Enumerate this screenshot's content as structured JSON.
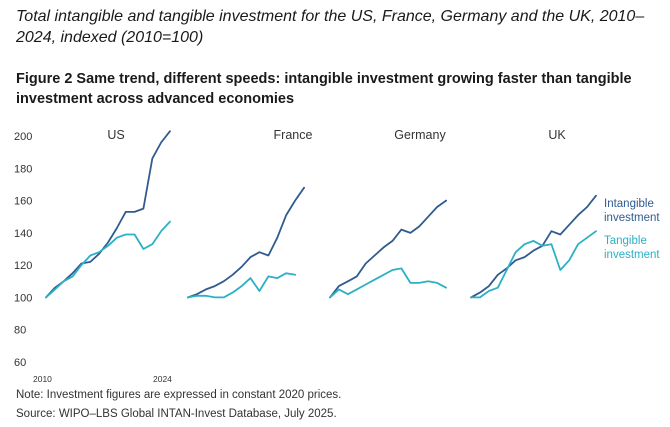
{
  "header": {
    "subtitle": "Total intangible and tangible investment for the US, France, Germany and the UK, 2010–2024, indexed (2010=100)",
    "figure_title": "Figure 2 Same trend, different speeds: intangible investment growing faster than tangible investment across advanced economies"
  },
  "footer": {
    "note": "Note: Investment figures are expressed in constant 2020 prices.",
    "source": "Source: WIPO–LBS Global INTAN-Invest Database, July 2025."
  },
  "colors": {
    "intangible": "#2f5b8f",
    "tangible": "#2cb0c6"
  },
  "chart_data": {
    "type": "line",
    "title": "",
    "ylim": [
      60,
      200
    ],
    "yticks": [
      60,
      80,
      100,
      120,
      140,
      160,
      180,
      200
    ],
    "x": [
      2010,
      2011,
      2012,
      2013,
      2014,
      2015,
      2016,
      2017,
      2018,
      2019,
      2020,
      2021,
      2022,
      2023,
      2024
    ],
    "xtick_labels": [
      "2010",
      "2024"
    ],
    "legend": {
      "placement": "right",
      "entries": [
        "Intangible investment",
        "Tangible investment"
      ]
    },
    "panels": [
      {
        "name": "US",
        "series": [
          {
            "name": "Intangible investment",
            "values": [
              100,
              106,
              110,
              115,
              121,
              122,
              127,
              134,
              143,
              153,
              153,
              155,
              186,
              196,
              203
            ]
          },
          {
            "name": "Tangible investment",
            "values": [
              100,
              105,
              110,
              113,
              120,
              126,
              128,
              132,
              137,
              139,
              139,
              130,
              133,
              141,
              147
            ]
          }
        ]
      },
      {
        "name": "France",
        "series": [
          {
            "name": "Intangible investment",
            "values": [
              100,
              102,
              105,
              107,
              110,
              114,
              119,
              125,
              128,
              126,
              137,
              151,
              160,
              168,
              null
            ]
          },
          {
            "name": "Tangible investment",
            "values": [
              100,
              101,
              101,
              100,
              100,
              103,
              107,
              112,
              104,
              113,
              112,
              115,
              114,
              null,
              null
            ]
          }
        ]
      },
      {
        "name": "Germany",
        "series": [
          {
            "name": "Intangible investment",
            "values": [
              100,
              107,
              110,
              113,
              121,
              126,
              131,
              135,
              142,
              140,
              144,
              150,
              156,
              160,
              null
            ]
          },
          {
            "name": "Tangible investment",
            "values": [
              100,
              105,
              102,
              105,
              108,
              111,
              114,
              117,
              118,
              109,
              109,
              110,
              109,
              106,
              null
            ]
          }
        ]
      },
      {
        "name": "UK",
        "series": [
          {
            "name": "Intangible investment",
            "values": [
              100,
              103,
              107,
              114,
              118,
              123,
              125,
              129,
              132,
              141,
              139,
              145,
              151,
              156,
              163
            ]
          },
          {
            "name": "Tangible investment",
            "values": [
              100,
              100,
              104,
              106,
              117,
              128,
              133,
              135,
              132,
              133,
              117,
              123,
              133,
              137,
              141
            ]
          }
        ]
      }
    ]
  }
}
